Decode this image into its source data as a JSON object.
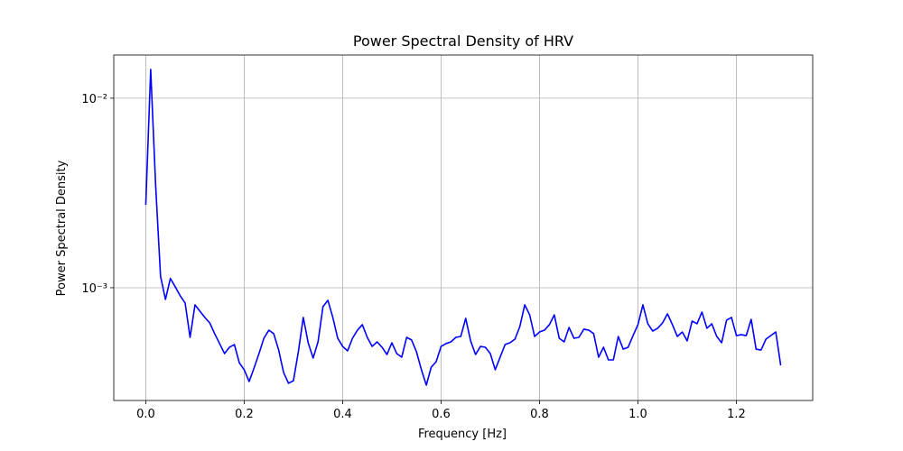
{
  "chart_data": {
    "type": "line",
    "title": "Power Spectral Density of HRV",
    "x_label": "Frequency [Hz]",
    "y_label": "Power Spectral Density",
    "yscale": "log",
    "grid": true,
    "xlim": [
      -0.065,
      1.355
    ],
    "ylim": [
      0.000254,
      0.0169
    ],
    "xticks": [
      {
        "value": 0,
        "label": "0.0"
      },
      0.2,
      0.4,
      0.6,
      0.8,
      {
        "value": 1,
        "label": "1.0"
      },
      1.2
    ],
    "yticks": [
      {
        "value": 0.001,
        "label": "10⁻³"
      },
      {
        "value": 0.01,
        "label": "10⁻²"
      }
    ],
    "x": [
      0,
      0.01,
      0.02,
      0.03,
      0.04,
      0.05,
      0.06,
      0.07,
      0.08,
      0.09,
      0.1,
      0.11,
      0.12,
      0.13,
      0.14,
      0.15,
      0.16,
      0.17,
      0.18,
      0.19,
      0.2,
      0.21,
      0.22,
      0.23,
      0.24,
      0.25,
      0.26,
      0.27,
      0.28,
      0.29,
      0.3,
      0.31,
      0.32,
      0.33,
      0.34,
      0.35,
      0.36,
      0.37,
      0.38,
      0.39,
      0.4,
      0.41,
      0.42,
      0.43,
      0.44,
      0.45,
      0.46,
      0.47,
      0.48,
      0.49,
      0.5,
      0.51,
      0.52,
      0.53,
      0.54,
      0.55,
      0.56,
      0.57,
      0.58,
      0.59,
      0.6,
      0.61,
      0.62,
      0.63,
      0.64,
      0.65,
      0.66,
      0.67,
      0.68,
      0.69,
      0.7,
      0.71,
      0.72,
      0.73,
      0.74,
      0.75,
      0.76,
      0.77,
      0.78,
      0.79,
      0.8,
      0.81,
      0.82,
      0.83,
      0.84,
      0.85,
      0.86,
      0.87,
      0.88,
      0.89,
      0.9,
      0.91,
      0.92,
      0.93,
      0.94,
      0.95,
      0.96,
      0.97,
      0.98,
      0.99,
      1.0,
      1.01,
      1.02,
      1.03,
      1.04,
      1.05,
      1.06,
      1.07,
      1.08,
      1.09,
      1.1,
      1.11,
      1.12,
      1.13,
      1.14,
      1.15,
      1.16,
      1.17,
      1.18,
      1.19,
      1.2,
      1.21,
      1.22,
      1.23,
      1.24,
      1.25,
      1.26,
      1.27,
      1.28,
      1.29
    ],
    "series": [
      {
        "color": "#0000ff",
        "values": [
          0.00274,
          0.0142,
          0.00349,
          0.00115,
          0.000867,
          0.00112,
          0.00101,
          0.000906,
          0.00083,
          0.000547,
          0.000812,
          0.000752,
          0.000697,
          0.000652,
          0.000572,
          0.000507,
          0.000449,
          0.000485,
          0.000501,
          0.000402,
          0.000369,
          0.00032,
          0.000377,
          0.000449,
          0.000541,
          0.000597,
          0.000572,
          0.000469,
          0.000357,
          0.000313,
          0.000323,
          0.000459,
          0.000697,
          0.000512,
          0.000425,
          0.000518,
          0.000794,
          0.000858,
          0.000697,
          0.000541,
          0.00049,
          0.000464,
          0.000541,
          0.000597,
          0.000638,
          0.000547,
          0.00049,
          0.000518,
          0.000485,
          0.000444,
          0.000512,
          0.000449,
          0.00043,
          0.000547,
          0.00053,
          0.000459,
          0.000369,
          0.000306,
          0.000381,
          0.000407,
          0.00049,
          0.000507,
          0.000518,
          0.000547,
          0.000553,
          0.000689,
          0.000524,
          0.000444,
          0.00049,
          0.000485,
          0.000449,
          0.000369,
          0.00043,
          0.000501,
          0.000512,
          0.000535,
          0.000624,
          0.000812,
          0.000719,
          0.000553,
          0.000584,
          0.000597,
          0.000638,
          0.000719,
          0.000541,
          0.000518,
          0.000617,
          0.000541,
          0.000547,
          0.000604,
          0.000597,
          0.000572,
          0.00043,
          0.000485,
          0.000416,
          0.000416,
          0.000553,
          0.000474,
          0.000485,
          0.000559,
          0.000638,
          0.000812,
          0.000645,
          0.00059,
          0.000611,
          0.000652,
          0.000728,
          0.000638,
          0.000553,
          0.000584,
          0.000524,
          0.000667,
          0.000645,
          0.000744,
          0.000611,
          0.000645,
          0.000553,
          0.000512,
          0.000674,
          0.000697,
          0.000559,
          0.000565,
          0.000559,
          0.000681,
          0.000474,
          0.000469,
          0.000535,
          0.000559,
          0.000584,
          0.000389
        ]
      }
    ]
  }
}
